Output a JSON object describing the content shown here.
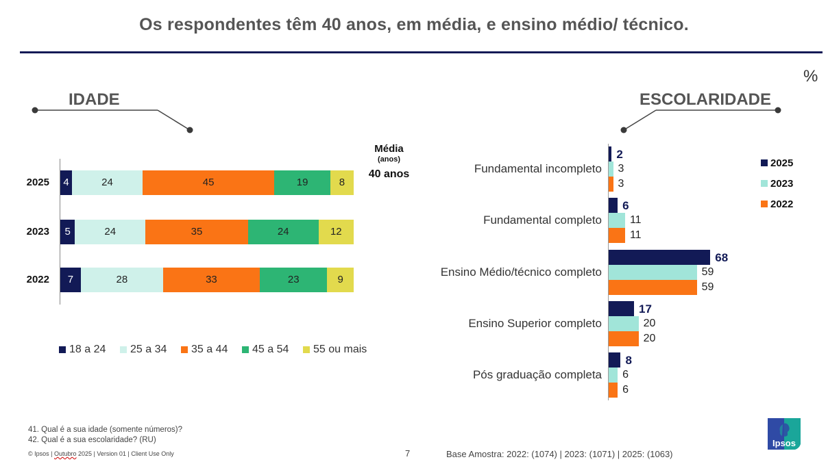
{
  "title": "Os respondentes têm 40 anos, em média, e ensino médio/ técnico.",
  "unit_symbol": "%",
  "media": {
    "label": "Média",
    "sub_label": "(anos)",
    "value_label": "40 anos"
  },
  "colors": {
    "title_rule": "#121a56",
    "navy": "#121a56",
    "mint_light": "#cff1ea",
    "mint": "#a1e5d9",
    "orange": "#fa7415",
    "green": "#2db574",
    "yellow": "#e2da4d",
    "text_gray": "#555555"
  },
  "chart_data": [
    {
      "type": "bar",
      "orientation": "horizontal",
      "stacked": true,
      "title": "IDADE",
      "categories": [
        "2025",
        "2023",
        "2022"
      ],
      "series": [
        {
          "name": "18 a 24",
          "color": "#121a56",
          "label_color": "#ffffff",
          "values": [
            4,
            5,
            7
          ]
        },
        {
          "name": "25 a 34",
          "color": "#cff1ea",
          "label_color": "#222222",
          "values": [
            24,
            24,
            28
          ]
        },
        {
          "name": "35 a 44",
          "color": "#fa7415",
          "label_color": "#222222",
          "values": [
            45,
            35,
            33
          ]
        },
        {
          "name": "45 a 54",
          "color": "#2db574",
          "label_color": "#222222",
          "values": [
            19,
            24,
            23
          ]
        },
        {
          "name": "55 ou mais",
          "color": "#e2da4d",
          "label_color": "#222222",
          "values": [
            8,
            12,
            9
          ]
        }
      ],
      "xlim": [
        0,
        100
      ],
      "legend": "bottom",
      "grid": false
    },
    {
      "type": "bar",
      "orientation": "horizontal",
      "stacked": false,
      "title": "ESCOLARIDADE",
      "categories": [
        "Fundamental incompleto",
        "Fundamental completo",
        "Ensino Médio/técnico completo",
        "Ensino Superior completo",
        "Pós graduação completa"
      ],
      "series": [
        {
          "name": "2025",
          "color": "#121a56",
          "bold_labels": true,
          "values": [
            2,
            6,
            68,
            17,
            8
          ]
        },
        {
          "name": "2023",
          "color": "#a1e5d9",
          "bold_labels": false,
          "values": [
            3,
            11,
            59,
            20,
            6
          ]
        },
        {
          "name": "2022",
          "color": "#fa7415",
          "bold_labels": false,
          "values": [
            3,
            11,
            59,
            20,
            6
          ]
        }
      ],
      "xlim": [
        0,
        100
      ],
      "legend": "top-right",
      "grid": false
    }
  ],
  "footer": {
    "questions": [
      "41. Qual é a sua idade (somente números)?",
      "42. Qual é a sua escolaridade? (RU)"
    ],
    "copyright_prefix": "© Ipsos | ",
    "copyright_month": "Outubro",
    "copyright_suffix": " 2025  | Version 01 | Client Use Only",
    "page_number": "7",
    "base": "Base Amostra: 2022: (1074) | 2023: (1071) | 2025: (1063)",
    "logo_text": "Ipsos"
  }
}
